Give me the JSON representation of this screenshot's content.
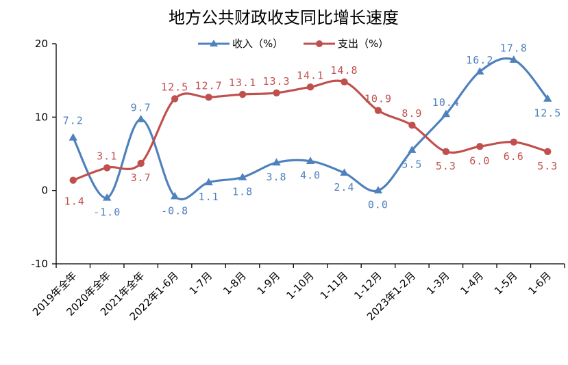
{
  "chart_data": {
    "type": "line",
    "title": "地方公共财政收支同比增长速度",
    "xlabel": "",
    "ylabel": "",
    "ylim": [
      -10,
      20
    ],
    "yticks": [
      -10,
      0,
      10,
      20
    ],
    "grid": false,
    "legend_position": "top",
    "categories": [
      "2019年全年",
      "2020年全年",
      "2021年全年",
      "2022年1-6月",
      "1-7月",
      "1-8月",
      "1-9月",
      "1-10月",
      "1-11月",
      "1-12月",
      "2023年1-2月",
      "1-3月",
      "1-4月",
      "1-5月",
      "1-6月"
    ],
    "series": [
      {
        "name": "收入（%）",
        "color": "#4F81BD",
        "marker": "triangle",
        "values": [
          7.2,
          -1.0,
          9.7,
          -0.8,
          1.1,
          1.8,
          3.8,
          4.0,
          2.4,
          0.0,
          5.5,
          10.4,
          16.2,
          17.8,
          12.5
        ],
        "labels": [
          "7.2",
          "-1.0",
          "9.7",
          "-0.8",
          "1.1",
          "1.8",
          "3.8",
          "4.0",
          "2.4",
          "0.0",
          "5.5",
          "10.4",
          "16.2",
          "17.8",
          "12.5"
        ]
      },
      {
        "name": "支出（%）",
        "color": "#C0504D",
        "marker": "circle",
        "values": [
          1.4,
          3.1,
          3.7,
          12.5,
          12.7,
          13.1,
          13.3,
          14.1,
          14.8,
          10.9,
          8.9,
          5.3,
          6.0,
          6.6,
          5.3
        ],
        "labels": [
          "1.4",
          "3.1",
          "3.7",
          "12.5",
          "12.7",
          "13.1",
          "13.3",
          "14.1",
          "14.8",
          "10.9",
          "8.9",
          "5.3",
          "6.0",
          "6.6",
          "5.3"
        ]
      }
    ]
  }
}
